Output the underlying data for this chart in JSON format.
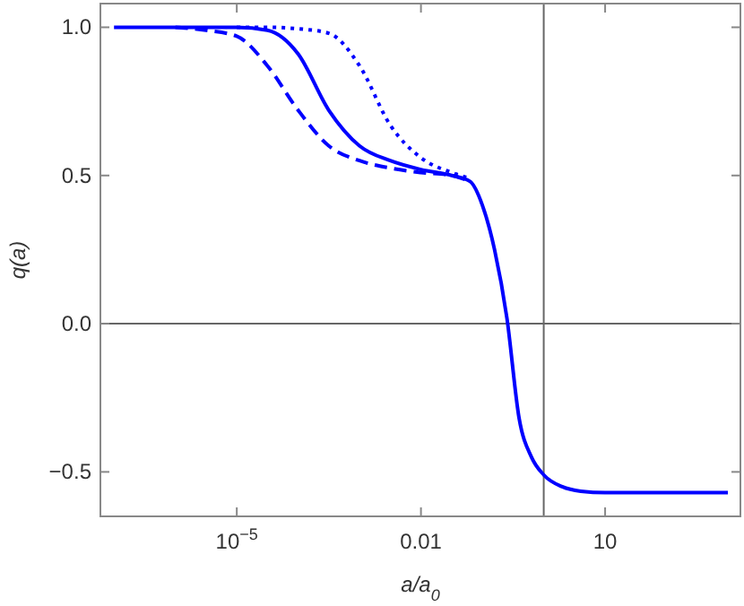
{
  "chart_data": {
    "type": "line",
    "xlabel": "a/a$_{0}$",
    "ylabel": "q(a)",
    "log": "x",
    "x": [
      1e-07,
      1e-06,
      3.16e-06,
      1e-05,
      3.16e-05,
      0.0001,
      0.000316,
      0.001,
      0.00316,
      0.01,
      0.0316,
      0.063,
      0.1,
      0.158,
      0.251,
      0.398,
      0.631,
      1,
      2,
      4,
      10,
      100,
      1000
    ],
    "series": [
      {
        "color": "#0000ff",
        "line_style": "dotted",
        "x": [
          1e-05,
          3.16e-05,
          0.0001,
          0.000316,
          0.001,
          0.00316,
          0.01,
          0.0316,
          0.063
        ],
        "values": [
          1,
          1,
          0.995,
          0.98,
          0.87,
          0.67,
          0.56,
          0.51,
          0.49
        ]
      },
      {
        "color": "#0000ff",
        "line_style": "solid",
        "values": [
          1,
          1,
          1,
          1,
          0.99,
          0.91,
          0.72,
          0.6,
          0.55,
          0.52,
          0.5,
          0.48,
          0.4,
          0.25,
          0.02,
          -0.32,
          -0.45,
          -0.51,
          -0.55,
          -0.565,
          -0.57,
          -0.57,
          -0.57
        ]
      },
      {
        "color": "#0000ff",
        "line_style": "dashed",
        "x": [
          1e-06,
          3.16e-06,
          1e-05,
          3.16e-05,
          0.0001,
          0.000316,
          0.001,
          0.00316,
          0.01,
          0.0316,
          0.063
        ],
        "values": [
          1,
          0.99,
          0.97,
          0.87,
          0.72,
          0.6,
          0.55,
          0.525,
          0.51,
          0.5,
          0.48
        ]
      }
    ],
    "xlim": [
      6e-08,
      1600
    ],
    "ylim": [
      -0.65,
      1.08
    ],
    "xticks": [
      {
        "value": 1e-05,
        "label": "10$^{−5}$"
      },
      0.01,
      10
    ],
    "yticks": [
      {
        "value": -0.5,
        "label": "−0.5"
      },
      {
        "value": 0,
        "label": "0.0"
      },
      0.5,
      {
        "value": 1,
        "label": "1.0"
      }
    ],
    "ref_lines": [
      {
        "axis": "x",
        "value": 1,
        "color": "#666666"
      },
      {
        "axis": "y",
        "value": 0,
        "color": "#666666"
      }
    ],
    "grid": false
  }
}
